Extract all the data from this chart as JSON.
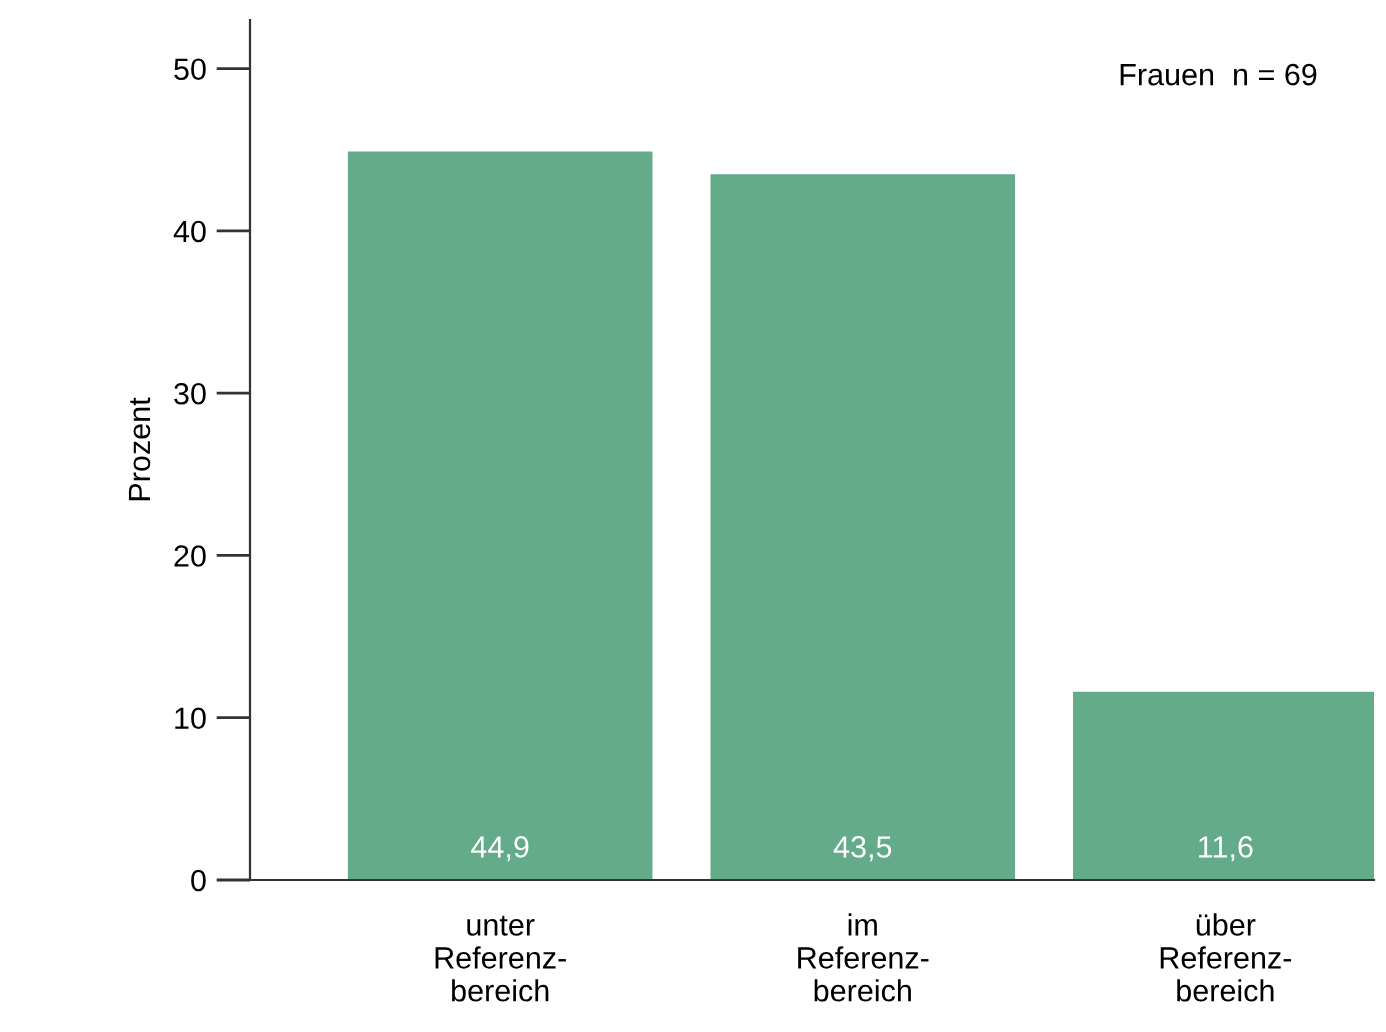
{
  "chart_data": {
    "type": "bar",
    "ylabel": "Prozent",
    "annotations": [
      "Frauen  n = 69"
    ],
    "categories": [
      "unter\nReferenz-\nbereich",
      "im\nReferenz-\nbereich",
      "über\nReferenz-\nbereich"
    ],
    "values": [
      44.9,
      43.5,
      11.6
    ],
    "value_labels": [
      "44,9",
      "43,5",
      "11,6"
    ],
    "color": "#64ab8a",
    "ylim": [
      0,
      53
    ],
    "yticks": [
      0,
      10,
      20,
      30,
      40,
      50
    ],
    "grid": false,
    "legend": false
  }
}
